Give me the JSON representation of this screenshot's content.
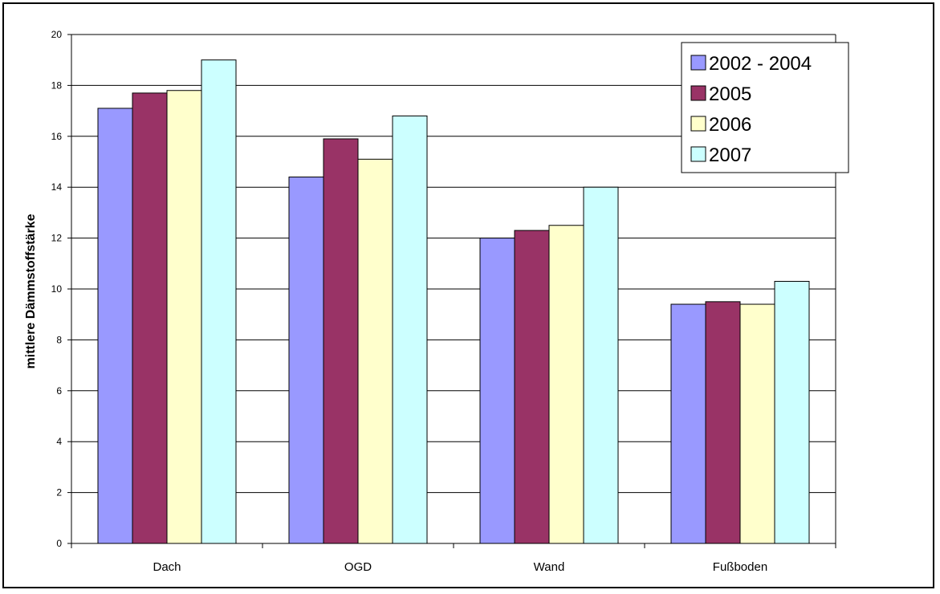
{
  "chart_data": {
    "type": "bar",
    "categories": [
      "Dach",
      "OGD",
      "Wand",
      "Fußboden"
    ],
    "series": [
      {
        "name": "2002 - 2004",
        "values": [
          17.1,
          14.4,
          12.0,
          9.4
        ],
        "color": "#9999ff"
      },
      {
        "name": "2005",
        "values": [
          17.7,
          15.9,
          12.3,
          9.5
        ],
        "color": "#993366"
      },
      {
        "name": "2006",
        "values": [
          17.8,
          15.1,
          12.5,
          9.4
        ],
        "color": "#ffffcc"
      },
      {
        "name": "2007",
        "values": [
          19.0,
          16.8,
          14.0,
          10.3
        ],
        "color": "#ccffff"
      }
    ],
    "title": "",
    "xlabel": "",
    "ylabel": "mittlere Dämmstoffstärke",
    "ylim": [
      0,
      20
    ],
    "yticks": [
      0,
      2,
      4,
      6,
      8,
      10,
      12,
      14,
      16,
      18,
      20
    ],
    "grid": true,
    "legend_position": "top-right"
  }
}
